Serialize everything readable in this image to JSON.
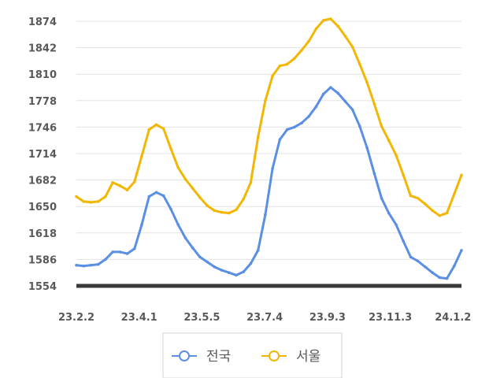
{
  "chart_data": {
    "type": "line",
    "title": "",
    "xlabel": "",
    "ylabel": "",
    "ylim": [
      1554,
      1874
    ],
    "y_ticks": [
      1554,
      1586,
      1618,
      1650,
      1682,
      1714,
      1746,
      1778,
      1810,
      1842,
      1874
    ],
    "x_tick_labels": [
      "23.2.2",
      "23.4.1",
      "23.5.5",
      "23.7.4",
      "23.9.3",
      "23.11.3",
      "24.1.2"
    ],
    "x_tick_positions": [
      0,
      8.64,
      17.28,
      25.92,
      34.56,
      43.2,
      51.84
    ],
    "grid": true,
    "legend_position": "bottom",
    "series": [
      {
        "name": "전국",
        "color": "#5B8FE3",
        "values": [
          1579,
          1578,
          1579,
          1580,
          1586,
          1595,
          1595,
          1593,
          1599,
          1628,
          1662,
          1667,
          1663,
          1647,
          1628,
          1612,
          1600,
          1589,
          1583,
          1577,
          1573,
          1570,
          1567,
          1571,
          1581,
          1597,
          1640,
          1696,
          1731,
          1743,
          1746,
          1751,
          1759,
          1771,
          1786,
          1794,
          1787,
          1777,
          1767,
          1747,
          1721,
          1690,
          1660,
          1642,
          1628,
          1608,
          1589,
          1584,
          1577,
          1570,
          1564,
          1563,
          1578,
          1597
        ]
      },
      {
        "name": "서울",
        "color": "#F2B705",
        "values": [
          1662,
          1656,
          1655,
          1656,
          1662,
          1679,
          1675,
          1670,
          1680,
          1711,
          1743,
          1749,
          1744,
          1720,
          1697,
          1683,
          1672,
          1661,
          1651,
          1645,
          1643,
          1642,
          1646,
          1659,
          1679,
          1734,
          1778,
          1808,
          1820,
          1822,
          1829,
          1839,
          1850,
          1865,
          1875,
          1877,
          1868,
          1856,
          1843,
          1822,
          1800,
          1774,
          1747,
          1730,
          1712,
          1688,
          1663,
          1660,
          1653,
          1645,
          1639,
          1642,
          1665,
          1688
        ]
      }
    ]
  }
}
